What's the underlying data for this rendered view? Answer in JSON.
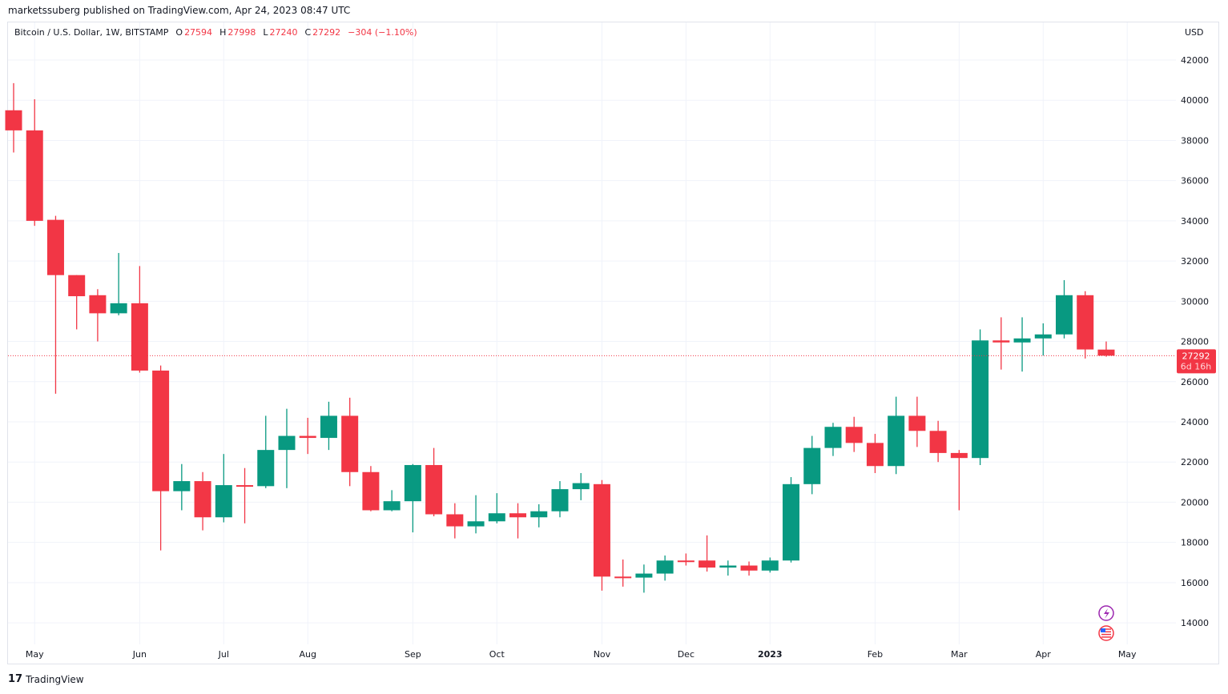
{
  "header": {
    "published": "marketssuberg published on TradingView.com, Apr 24, 2023 08:47 UTC"
  },
  "legend": {
    "symbol": "Bitcoin / U.S. Dollar, 1W, BITSTAMP",
    "o_label": "O",
    "o": "27594",
    "h_label": "H",
    "h": "27998",
    "l_label": "L",
    "l": "27240",
    "c_label": "C",
    "c": "27292",
    "change": "−304 (−1.10%)"
  },
  "currency": "USD",
  "price_label": {
    "price": "27292",
    "countdown": "6d 16h"
  },
  "footer": {
    "brand": "TradingView"
  },
  "icons": [
    "lightning-event-icon",
    "us-flag-event-icon"
  ],
  "colors": {
    "up": "#089981",
    "down": "#f23645",
    "grid": "#f0f3fa"
  },
  "chart_data": {
    "type": "candlestick",
    "interval": "1W",
    "ylim": [
      13000,
      43000
    ],
    "y_ticks": [
      14000,
      16000,
      18000,
      20000,
      22000,
      24000,
      26000,
      28000,
      30000,
      32000,
      34000,
      36000,
      38000,
      40000,
      42000
    ],
    "x_ticks": [
      {
        "label": "May",
        "date": "2022-05-02"
      },
      {
        "label": "Jun",
        "date": "2022-06-06"
      },
      {
        "label": "Jul",
        "date": "2022-07-04"
      },
      {
        "label": "Aug",
        "date": "2022-08-01"
      },
      {
        "label": "Sep",
        "date": "2022-09-05"
      },
      {
        "label": "Oct",
        "date": "2022-10-03"
      },
      {
        "label": "Nov",
        "date": "2022-11-07"
      },
      {
        "label": "Dec",
        "date": "2022-12-05"
      },
      {
        "label": "2023",
        "date": "2023-01-02"
      },
      {
        "label": "Feb",
        "date": "2023-02-06"
      },
      {
        "label": "Mar",
        "date": "2023-03-06"
      },
      {
        "label": "Apr",
        "date": "2023-04-03"
      },
      {
        "label": "May",
        "date": "2023-05-01"
      }
    ],
    "grid": true,
    "last_price": 27292,
    "candles": [
      {
        "d": "2022-04-25",
        "o": 39500,
        "h": 40850,
        "l": 37400,
        "c": 38500
      },
      {
        "d": "2022-05-02",
        "o": 38500,
        "h": 40050,
        "l": 33750,
        "c": 34000
      },
      {
        "d": "2022-05-09",
        "o": 34050,
        "h": 34250,
        "l": 25400,
        "c": 31300
      },
      {
        "d": "2022-05-16",
        "o": 31300,
        "h": 31300,
        "l": 28600,
        "c": 30250
      },
      {
        "d": "2022-05-23",
        "o": 30300,
        "h": 30600,
        "l": 28000,
        "c": 29400
      },
      {
        "d": "2022-05-30",
        "o": 29400,
        "h": 32400,
        "l": 29300,
        "c": 29900
      },
      {
        "d": "2022-06-06",
        "o": 29900,
        "h": 31750,
        "l": 26450,
        "c": 26550
      },
      {
        "d": "2022-06-13",
        "o": 26550,
        "h": 26800,
        "l": 17600,
        "c": 20550
      },
      {
        "d": "2022-06-20",
        "o": 20550,
        "h": 21900,
        "l": 19600,
        "c": 21050
      },
      {
        "d": "2022-06-27",
        "o": 21050,
        "h": 21500,
        "l": 18600,
        "c": 19250
      },
      {
        "d": "2022-07-04",
        "o": 19250,
        "h": 22400,
        "l": 19000,
        "c": 20850
      },
      {
        "d": "2022-07-11",
        "o": 20850,
        "h": 21700,
        "l": 18950,
        "c": 20800
      },
      {
        "d": "2022-07-18",
        "o": 20800,
        "h": 24300,
        "l": 20700,
        "c": 22600
      },
      {
        "d": "2022-07-25",
        "o": 22600,
        "h": 24650,
        "l": 20700,
        "c": 23300
      },
      {
        "d": "2022-08-01",
        "o": 23300,
        "h": 24200,
        "l": 22400,
        "c": 23200
      },
      {
        "d": "2022-08-08",
        "o": 23200,
        "h": 25000,
        "l": 22600,
        "c": 24300
      },
      {
        "d": "2022-08-15",
        "o": 24300,
        "h": 25200,
        "l": 20800,
        "c": 21500
      },
      {
        "d": "2022-08-22",
        "o": 21500,
        "h": 21800,
        "l": 19550,
        "c": 19600
      },
      {
        "d": "2022-08-29",
        "o": 19600,
        "h": 20600,
        "l": 19550,
        "c": 20050
      },
      {
        "d": "2022-09-05",
        "o": 20050,
        "h": 21900,
        "l": 18500,
        "c": 21850
      },
      {
        "d": "2022-09-12",
        "o": 21850,
        "h": 22700,
        "l": 19300,
        "c": 19400
      },
      {
        "d": "2022-09-19",
        "o": 19400,
        "h": 19950,
        "l": 18200,
        "c": 18800
      },
      {
        "d": "2022-09-26",
        "o": 18800,
        "h": 20350,
        "l": 18450,
        "c": 19050
      },
      {
        "d": "2022-10-03",
        "o": 19050,
        "h": 20450,
        "l": 18950,
        "c": 19450
      },
      {
        "d": "2022-10-10",
        "o": 19450,
        "h": 19950,
        "l": 18200,
        "c": 19250
      },
      {
        "d": "2022-10-17",
        "o": 19250,
        "h": 19900,
        "l": 18750,
        "c": 19550
      },
      {
        "d": "2022-10-24",
        "o": 19550,
        "h": 21050,
        "l": 19250,
        "c": 20650
      },
      {
        "d": "2022-10-31",
        "o": 20650,
        "h": 21450,
        "l": 20100,
        "c": 20950
      },
      {
        "d": "2022-11-07",
        "o": 20900,
        "h": 21100,
        "l": 15600,
        "c": 16300
      },
      {
        "d": "2022-11-14",
        "o": 16300,
        "h": 17150,
        "l": 15800,
        "c": 16250
      },
      {
        "d": "2022-11-21",
        "o": 16250,
        "h": 16900,
        "l": 15500,
        "c": 16450
      },
      {
        "d": "2022-11-28",
        "o": 16450,
        "h": 17350,
        "l": 16100,
        "c": 17100
      },
      {
        "d": "2022-12-05",
        "o": 17100,
        "h": 17450,
        "l": 16850,
        "c": 17050
      },
      {
        "d": "2022-12-12",
        "o": 17100,
        "h": 18350,
        "l": 16550,
        "c": 16750
      },
      {
        "d": "2022-12-19",
        "o": 16750,
        "h": 17100,
        "l": 16350,
        "c": 16850
      },
      {
        "d": "2022-12-26",
        "o": 16850,
        "h": 17050,
        "l": 16350,
        "c": 16600
      },
      {
        "d": "2023-01-02",
        "o": 16600,
        "h": 17250,
        "l": 16500,
        "c": 17100
      },
      {
        "d": "2023-01-09",
        "o": 17100,
        "h": 21250,
        "l": 17000,
        "c": 20900
      },
      {
        "d": "2023-01-16",
        "o": 20900,
        "h": 23300,
        "l": 20400,
        "c": 22700
      },
      {
        "d": "2023-01-23",
        "o": 22700,
        "h": 23950,
        "l": 22300,
        "c": 23750
      },
      {
        "d": "2023-01-30",
        "o": 23750,
        "h": 24250,
        "l": 22500,
        "c": 22950
      },
      {
        "d": "2023-02-06",
        "o": 22950,
        "h": 23400,
        "l": 21450,
        "c": 21800
      },
      {
        "d": "2023-02-13",
        "o": 21800,
        "h": 25250,
        "l": 21400,
        "c": 24300
      },
      {
        "d": "2023-02-20",
        "o": 24300,
        "h": 25250,
        "l": 22750,
        "c": 23550
      },
      {
        "d": "2023-02-27",
        "o": 23550,
        "h": 24050,
        "l": 22000,
        "c": 22450
      },
      {
        "d": "2023-03-06",
        "o": 22450,
        "h": 22600,
        "l": 19600,
        "c": 22200
      },
      {
        "d": "2023-03-13",
        "o": 22200,
        "h": 28600,
        "l": 21850,
        "c": 28050
      },
      {
        "d": "2023-03-20",
        "o": 28050,
        "h": 29200,
        "l": 26600,
        "c": 27950
      },
      {
        "d": "2023-03-27",
        "o": 27950,
        "h": 29200,
        "l": 26500,
        "c": 28150
      },
      {
        "d": "2023-04-03",
        "o": 28150,
        "h": 28900,
        "l": 27300,
        "c": 28350
      },
      {
        "d": "2023-04-10",
        "o": 28350,
        "h": 31050,
        "l": 28150,
        "c": 30300
      },
      {
        "d": "2023-04-17",
        "o": 30300,
        "h": 30500,
        "l": 27150,
        "c": 27600
      },
      {
        "d": "2023-04-24",
        "o": 27594,
        "h": 27998,
        "l": 27240,
        "c": 27292
      }
    ]
  }
}
